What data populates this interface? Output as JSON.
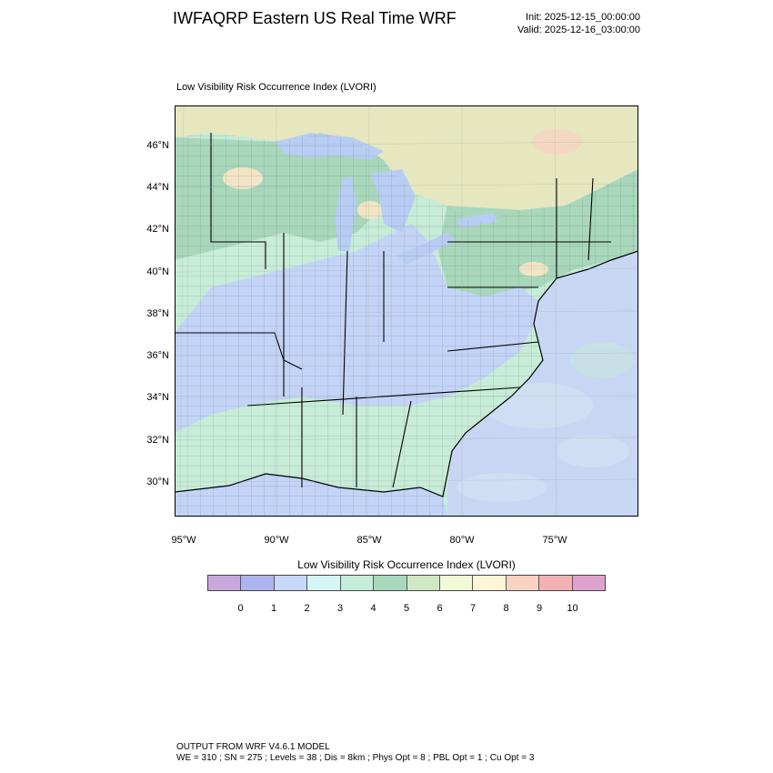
{
  "header": {
    "title": "IWFAQRP Eastern US Real Time WRF",
    "init": "Init: 2025-12-15_00:00:00",
    "valid": "Valid: 2025-12-16_03:00:00"
  },
  "panel": {
    "label": "Low Visibility Risk Occurrence Index   (LVORI)"
  },
  "map": {
    "lat_labels": [
      "46°N",
      "44°N",
      "42°N",
      "40°N",
      "38°N",
      "36°N",
      "34°N",
      "32°N",
      "30°N"
    ],
    "lon_labels": [
      "95°W",
      "90°W",
      "85°W",
      "80°W",
      "75°W"
    ],
    "colors": {
      "land_light": "#bfe7cf",
      "land_green": "#a4d6b6",
      "land_tan": "#e8e6bf",
      "lvori_blue": "#c3d4f7",
      "ocean": "#c7d6f2",
      "lake": "#b8cdf3",
      "canada_tan": "#e7e7bf",
      "hot_spot": "#f4c7b5"
    }
  },
  "colorbar": {
    "title": "Low Visibility Risk Occurrence Index  (LVORI)",
    "ticks": [
      "0",
      "1",
      "2",
      "3",
      "4",
      "5",
      "6",
      "7",
      "8",
      "9",
      "10"
    ],
    "colors": [
      "#c9a7dc",
      "#aeb4ee",
      "#c8d8fb",
      "#d4f7f5",
      "#c7ecd8",
      "#a8d7bb",
      "#cfe9c3",
      "#f2f9d6",
      "#fdf5d6",
      "#f9d2c2",
      "#f0b2b2",
      "#dea3cc"
    ]
  },
  "footer": {
    "line1": "OUTPUT FROM WRF V4.6.1 MODEL",
    "line2": "WE = 310 ; SN = 275 ; Levels = 38 ; Dis = 8km ; Phys Opt = 8 ; PBL Opt = 1 ; Cu Opt = 3"
  }
}
